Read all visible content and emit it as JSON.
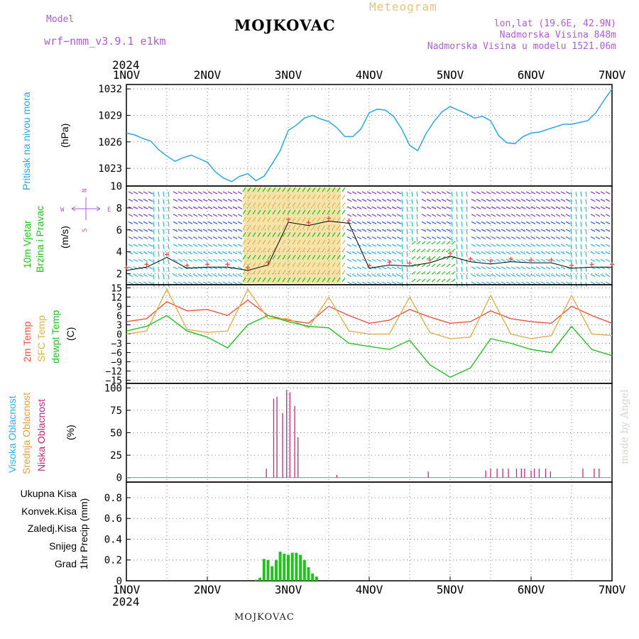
{
  "header": {
    "model_label": "Model",
    "model_name": "wrf−nmm_v3.9.1  e1km",
    "station": "MOJKOVAC",
    "product": "Meteogram",
    "coords": "lon,lat (19.6E, 42.9N)",
    "elevation": "Nadmorska Visina 848m",
    "model_elevation": "Nadmorska Visina u modelu 1521.06m"
  },
  "footer": {
    "station": "MOJKOVAC",
    "credit": "made by Angel"
  },
  "time_axis": {
    "year": "2024",
    "labels": [
      "1NOV",
      "2NOV",
      "3NOV",
      "4NOV",
      "5NOV",
      "6NOV",
      "7NOV"
    ]
  },
  "colors": {
    "pressure": "#2aa6e8",
    "temp2m": "#f0503c",
    "sfc_temp": "#e0b050",
    "dewpt": "#22c11e",
    "cloud_high": "#2ab4e8",
    "cloud_mid": "#e0a040",
    "cloud_low": "#c8287a",
    "precip_total": "#22c11e",
    "wind_label": "#22c11e",
    "wind_dir_label": "#b05adc"
  },
  "panels": {
    "pressure": {
      "label": "Pritisak na nivou mora",
      "unit": "(hPa)"
    },
    "wind": {
      "label1": "10m Vjetar",
      "label2": "Brzina i Pravac",
      "unit": "(m/s)",
      "compass_n": "N",
      "compass_s": "S",
      "compass_w": "W",
      "compass_e": "E"
    },
    "temp": {
      "label1": "2m Temp",
      "label2": "SFC Temp",
      "label3": "dewpt Temp",
      "unit": "(C)"
    },
    "cloud": {
      "label1": "Visoka Oblacnost",
      "label2": "Srednja Oblacnost",
      "label3": "Niska Oblacnost",
      "unit": "(%)"
    },
    "precip": {
      "labels": [
        "Ukupna Kisa",
        "Konvek.Kisa",
        "Zaledj.Kisa",
        "Snijeg",
        "Grad"
      ],
      "label_colors": [
        "#22c11e",
        "#f0503c",
        "#f08a3c",
        "#4a4ae8",
        "#2ac0c0"
      ],
      "unit": "1hr Precip (mm)"
    }
  },
  "chart_data": [
    {
      "type": "line",
      "title": "",
      "ylabel": "(hPa)",
      "ylim": [
        1021,
        1032.5
      ],
      "yticks": [
        1023,
        1026,
        1029,
        1032
      ],
      "grid": true,
      "x_days": [
        0,
        0.1,
        0.2,
        0.3,
        0.4,
        0.5,
        0.6,
        0.7,
        0.8,
        0.9,
        1.0,
        1.1,
        1.2,
        1.3,
        1.4,
        1.5,
        1.6,
        1.7,
        1.8,
        1.9,
        2.0,
        2.1,
        2.2,
        2.3,
        2.4,
        2.5,
        2.6,
        2.7,
        2.8,
        2.9,
        3.0,
        3.1,
        3.2,
        3.3,
        3.4,
        3.5,
        3.6,
        3.7,
        3.8,
        3.9,
        4.0,
        4.1,
        4.2,
        4.3,
        4.4,
        4.5,
        4.6,
        4.7,
        4.8,
        4.9,
        5.0,
        5.1,
        5.2,
        5.3,
        5.4,
        5.5,
        5.6,
        5.7,
        5.8,
        5.9,
        6.0
      ],
      "series": [
        {
          "name": "",
          "values": [
            1027.0,
            1026.8,
            1026.4,
            1026.1,
            1025.1,
            1024.4,
            1023.8,
            1024.2,
            1024.5,
            1024.1,
            1023.7,
            1022.6,
            1021.9,
            1021.5,
            1022.1,
            1022.4,
            1021.6,
            1022.1,
            1023.5,
            1025.0,
            1027.3,
            1027.9,
            1028.7,
            1029.0,
            1028.6,
            1028.3,
            1027.6,
            1026.6,
            1026.6,
            1027.5,
            1029.3,
            1029.7,
            1029.6,
            1028.9,
            1027.5,
            1025.6,
            1025.0,
            1026.9,
            1028.3,
            1029.4,
            1030.0,
            1029.6,
            1029.2,
            1028.7,
            1028.9,
            1028.4,
            1026.7,
            1025.9,
            1025.8,
            1026.6,
            1027.0,
            1027.1,
            1027.4,
            1027.7,
            1028.0,
            1028.0,
            1028.2,
            1028.4,
            1029.3,
            1030.7,
            1032.0
          ]
        }
      ]
    },
    {
      "type": "scatter",
      "title": "",
      "ylabel": "(m/s)",
      "ylim": [
        1,
        10
      ],
      "yticks": [
        2,
        4,
        6,
        8,
        10
      ],
      "grid": true,
      "x_days": [
        0,
        0.25,
        0.5,
        0.75,
        1.0,
        1.25,
        1.5,
        1.75,
        2.0,
        2.25,
        2.5,
        2.75,
        3.0,
        3.25,
        3.5,
        3.75,
        4.0,
        4.25,
        4.5,
        4.75,
        5.0,
        5.25,
        5.5,
        5.75,
        6.0
      ],
      "series": [
        {
          "name": "",
          "values": [
            2.3,
            2.6,
            3.5,
            2.5,
            2.6,
            2.6,
            2.3,
            2.8,
            6.7,
            6.4,
            6.8,
            6.6,
            2.5,
            2.8,
            2.7,
            3.0,
            3.6,
            3.1,
            2.9,
            3.1,
            3.0,
            3.0,
            2.5,
            2.6,
            2.6
          ]
        }
      ]
    },
    {
      "type": "line",
      "title": "",
      "ylabel": "(C)",
      "ylim": [
        -16,
        16
      ],
      "yticks": [
        -15,
        -12,
        -9,
        -6,
        -3,
        0,
        3,
        6,
        9,
        12,
        15
      ],
      "grid": true,
      "x_days": [
        0,
        0.25,
        0.5,
        0.75,
        1.0,
        1.25,
        1.5,
        1.75,
        2.0,
        2.25,
        2.5,
        2.75,
        3.0,
        3.25,
        3.5,
        3.75,
        4.0,
        4.25,
        4.5,
        4.75,
        5.0,
        5.25,
        5.5,
        5.75,
        6.0
      ],
      "series": [
        {
          "name": "2m Temp",
          "values": [
            4.0,
            5.0,
            10.5,
            7.5,
            8.0,
            6.0,
            11.0,
            6.0,
            4.5,
            3.5,
            9.0,
            6.0,
            3.5,
            4.5,
            8.0,
            5.5,
            3.5,
            4.0,
            7.5,
            5.0,
            4.0,
            3.5,
            9.0,
            6.0,
            3.5
          ]
        },
        {
          "name": "SFC Temp",
          "values": [
            0.0,
            1.0,
            14.5,
            1.5,
            0.5,
            1.0,
            14.5,
            5.0,
            5.0,
            2.0,
            12.0,
            1.0,
            0.0,
            0.0,
            12.0,
            0.5,
            -1.5,
            -1.0,
            12.5,
            0.0,
            -1.5,
            -0.5,
            12.5,
            0.0,
            -0.5
          ]
        },
        {
          "name": "dewpt Temp",
          "values": [
            1.0,
            2.5,
            6.0,
            1.0,
            -1.0,
            -4.5,
            3.0,
            6.0,
            4.0,
            2.5,
            2.0,
            -3.0,
            -4.0,
            -5.0,
            -2.0,
            -10.0,
            -14.0,
            -11.0,
            -1.5,
            -3.0,
            -5.0,
            -6.0,
            2.5,
            -5.0,
            -7.0
          ]
        }
      ]
    },
    {
      "type": "bar",
      "title": "",
      "ylabel": "(%)",
      "ylim": [
        -5,
        105
      ],
      "yticks": [
        0,
        25,
        50,
        75,
        100
      ],
      "grid": true,
      "x_days": [
        1.73,
        1.82,
        1.86,
        1.93,
        1.98,
        2.02,
        2.08,
        2.12,
        2.6,
        3.73,
        4.44,
        4.5,
        4.58,
        4.65,
        4.72,
        4.82,
        4.88,
        4.92,
        5.0,
        5.04,
        5.1,
        5.18,
        5.24,
        5.64,
        5.78,
        5.84
      ],
      "series": [
        {
          "name": "Niska Oblacnost",
          "values": [
            10,
            88,
            90,
            72,
            98,
            95,
            80,
            45,
            3,
            7,
            8,
            10,
            10,
            10,
            10,
            10,
            10,
            10,
            8,
            10,
            10,
            10,
            7,
            10,
            10,
            10
          ]
        }
      ]
    },
    {
      "type": "bar",
      "title": "",
      "ylabel": "1hr Precip (mm)",
      "ylim": [
        0,
        0.95
      ],
      "yticks": [
        0,
        0.2,
        0.4,
        0.6,
        0.8
      ],
      "grid": true,
      "x_days": [
        1.6,
        1.65,
        1.7,
        1.75,
        1.8,
        1.85,
        1.9,
        1.95,
        2.0,
        2.05,
        2.1,
        2.15,
        2.2,
        2.25,
        2.3,
        2.35
      ],
      "series": [
        {
          "name": "Ukupna Kisa",
          "values": [
            0.01,
            0.03,
            0.21,
            0.2,
            0.14,
            0.2,
            0.28,
            0.26,
            0.25,
            0.27,
            0.27,
            0.25,
            0.2,
            0.13,
            0.07,
            0.04
          ]
        }
      ]
    }
  ]
}
